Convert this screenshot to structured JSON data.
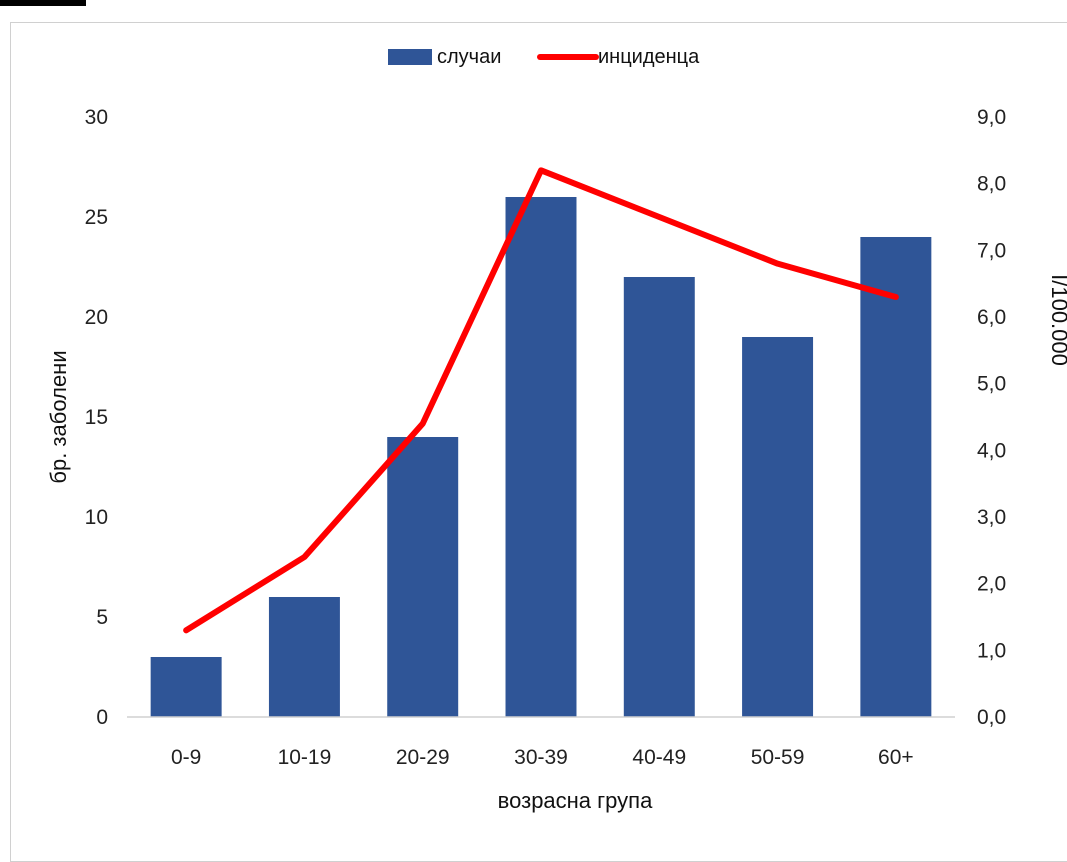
{
  "caption": "",
  "chart_data": {
    "type": "bar",
    "categories": [
      "0-9",
      "10-19",
      "20-29",
      "30-39",
      "40-49",
      "50-59",
      "60+"
    ],
    "series": [
      {
        "name": "случаи",
        "type": "bar",
        "axis": "left",
        "color": "#2f5597",
        "values": [
          3,
          6,
          14,
          26,
          22,
          19,
          24
        ]
      },
      {
        "name": "инциденца",
        "type": "line",
        "axis": "right",
        "color": "#ff0000",
        "values": [
          1.3,
          2.4,
          4.4,
          8.2,
          7.5,
          6.8,
          6.3
        ]
      }
    ],
    "xlabel": "возрасна група",
    "ylabel": "бр. заболени",
    "y2label": "I/100.000",
    "ylim": [
      0,
      30
    ],
    "y2lim": [
      0,
      9
    ],
    "yticks": [
      "0",
      "5",
      "10",
      "15",
      "20",
      "25",
      "30"
    ],
    "y2ticks": [
      "0,0",
      "1,0",
      "2,0",
      "3,0",
      "4,0",
      "5,0",
      "6,0",
      "7,0",
      "8,0",
      "9,0"
    ],
    "legend_position": "top-center",
    "grid": false
  }
}
